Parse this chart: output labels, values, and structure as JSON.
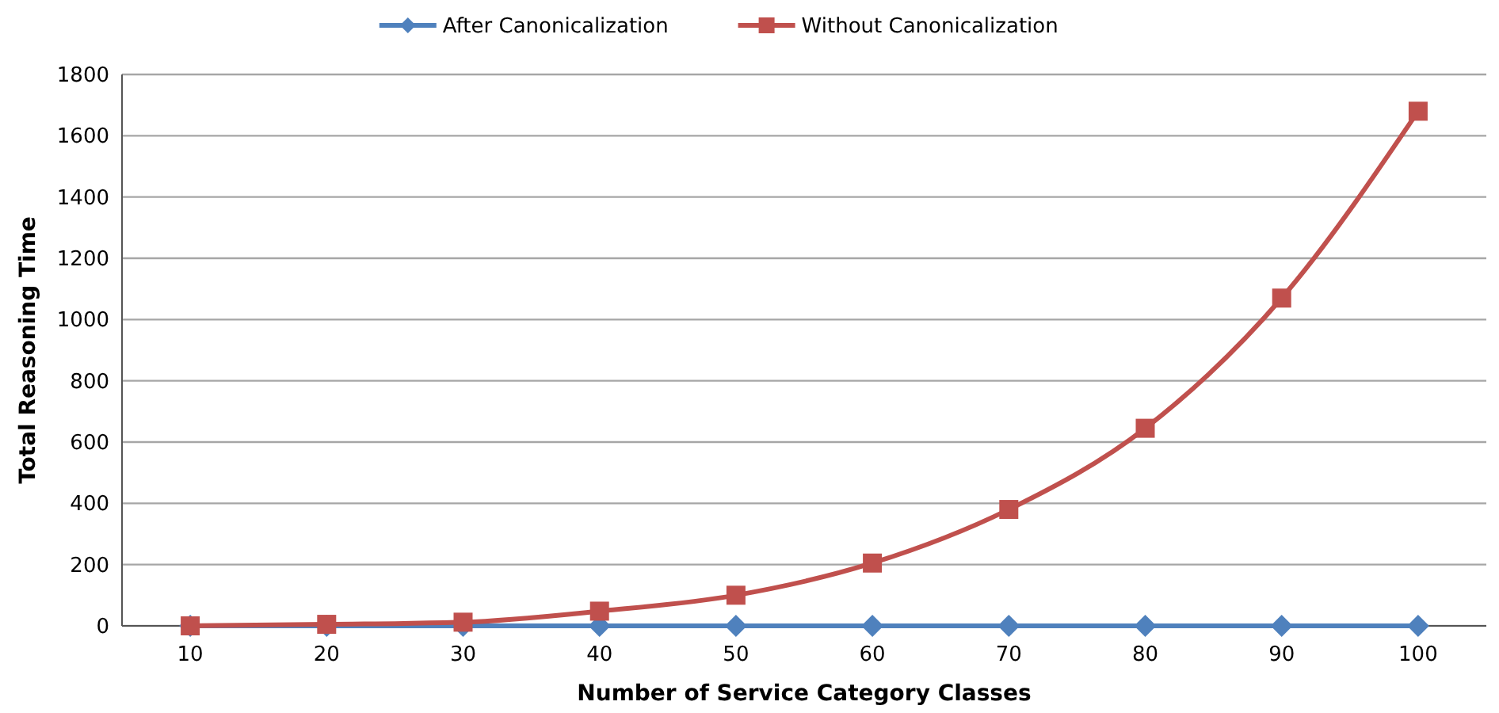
{
  "chart_data": {
    "type": "line",
    "xlabel": "Number of Service Category Classes",
    "ylabel": "Total Reasoning Time",
    "categories": [
      "10",
      "20",
      "30",
      "40",
      "50",
      "60",
      "70",
      "80",
      "90",
      "100"
    ],
    "series": [
      {
        "name": "After Canonicalization",
        "color": "#4f81bd",
        "marker": "diamond",
        "values": [
          0,
          0,
          0,
          0,
          0,
          0,
          0,
          0,
          0,
          0
        ]
      },
      {
        "name": "Without Canonicalization",
        "color": "#c0504d",
        "marker": "square",
        "values": [
          0,
          5,
          12,
          48,
          100,
          205,
          380,
          645,
          1070,
          1680
        ]
      }
    ],
    "ylim": [
      0,
      1800
    ],
    "yticks": [
      0,
      200,
      400,
      600,
      800,
      1000,
      1200,
      1400,
      1600,
      1800
    ],
    "grid": "y",
    "legend": "top"
  }
}
